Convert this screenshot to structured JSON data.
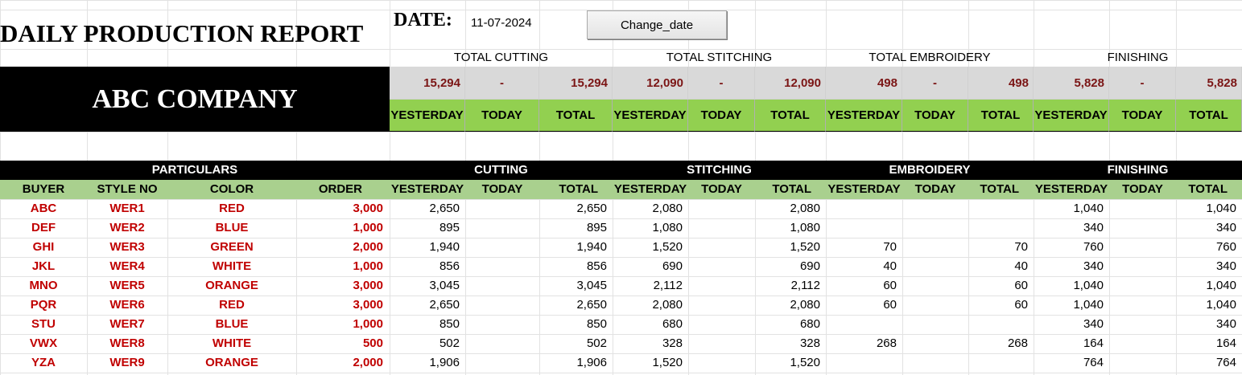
{
  "header": {
    "title": "DAILY PRODUCTION REPORT",
    "date_label": "DATE:",
    "date_value": "11-07-2024",
    "change_button": "Change_date",
    "company": "ABC COMPANY"
  },
  "summary": [
    {
      "title": "TOTAL CUTTING",
      "yesterday": "15,294",
      "today": "-",
      "total": "15,294"
    },
    {
      "title": "TOTAL STITCHING",
      "yesterday": "12,090",
      "today": "-",
      "total": "12,090"
    },
    {
      "title": "TOTAL EMBROIDERY",
      "yesterday": "498",
      "today": "-",
      "total": "498"
    },
    {
      "title": "FINISHING",
      "yesterday": "5,828",
      "today": "-",
      "total": "5,828"
    }
  ],
  "labels": {
    "yesterday": "YESTERDAY",
    "today": "TODAY",
    "total": "TOTAL"
  },
  "sections": {
    "particulars": "PARTICULARS",
    "cutting": "CUTTING",
    "stitching": "STITCHING",
    "embroidery": "EMBROIDERY",
    "finishing": "FINISHING"
  },
  "columns": {
    "buyer": "BUYER",
    "style": "STYLE NO",
    "color": "COLOR",
    "order": "ORDER"
  },
  "rows": [
    {
      "buyer": "ABC",
      "style": "WER1",
      "color": "RED",
      "order": "3,000",
      "cut_y": "2,650",
      "cut_t": "",
      "cut_total": "2,650",
      "st_y": "2,080",
      "st_t": "",
      "st_total": "2,080",
      "em_y": "",
      "em_t": "",
      "em_total": "",
      "fi_y": "1,040",
      "fi_t": "",
      "fi_total": "1,040"
    },
    {
      "buyer": "DEF",
      "style": "WER2",
      "color": "BLUE",
      "order": "1,000",
      "cut_y": "895",
      "cut_t": "",
      "cut_total": "895",
      "st_y": "1,080",
      "st_t": "",
      "st_total": "1,080",
      "em_y": "",
      "em_t": "",
      "em_total": "",
      "fi_y": "340",
      "fi_t": "",
      "fi_total": "340"
    },
    {
      "buyer": "GHI",
      "style": "WER3",
      "color": "GREEN",
      "order": "2,000",
      "cut_y": "1,940",
      "cut_t": "",
      "cut_total": "1,940",
      "st_y": "1,520",
      "st_t": "",
      "st_total": "1,520",
      "em_y": "70",
      "em_t": "",
      "em_total": "70",
      "fi_y": "760",
      "fi_t": "",
      "fi_total": "760"
    },
    {
      "buyer": "JKL",
      "style": "WER4",
      "color": "WHITE",
      "order": "1,000",
      "cut_y": "856",
      "cut_t": "",
      "cut_total": "856",
      "st_y": "690",
      "st_t": "",
      "st_total": "690",
      "em_y": "40",
      "em_t": "",
      "em_total": "40",
      "fi_y": "340",
      "fi_t": "",
      "fi_total": "340"
    },
    {
      "buyer": "MNO",
      "style": "WER5",
      "color": "ORANGE",
      "order": "3,000",
      "cut_y": "3,045",
      "cut_t": "",
      "cut_total": "3,045",
      "st_y": "2,112",
      "st_t": "",
      "st_total": "2,112",
      "em_y": "60",
      "em_t": "",
      "em_total": "60",
      "fi_y": "1,040",
      "fi_t": "",
      "fi_total": "1,040"
    },
    {
      "buyer": "PQR",
      "style": "WER6",
      "color": "RED",
      "order": "3,000",
      "cut_y": "2,650",
      "cut_t": "",
      "cut_total": "2,650",
      "st_y": "2,080",
      "st_t": "",
      "st_total": "2,080",
      "em_y": "60",
      "em_t": "",
      "em_total": "60",
      "fi_y": "1,040",
      "fi_t": "",
      "fi_total": "1,040"
    },
    {
      "buyer": "STU",
      "style": "WER7",
      "color": "BLUE",
      "order": "1,000",
      "cut_y": "850",
      "cut_t": "",
      "cut_total": "850",
      "st_y": "680",
      "st_t": "",
      "st_total": "680",
      "em_y": "",
      "em_t": "",
      "em_total": "",
      "fi_y": "340",
      "fi_t": "",
      "fi_total": "340"
    },
    {
      "buyer": "VWX",
      "style": "WER8",
      "color": "WHITE",
      "order": "500",
      "cut_y": "502",
      "cut_t": "",
      "cut_total": "502",
      "st_y": "328",
      "st_t": "",
      "st_total": "328",
      "em_y": "268",
      "em_t": "",
      "em_total": "268",
      "fi_y": "164",
      "fi_t": "",
      "fi_total": "164"
    },
    {
      "buyer": "YZA",
      "style": "WER9",
      "color": "ORANGE",
      "order": "2,000",
      "cut_y": "1,906",
      "cut_t": "",
      "cut_total": "1,906",
      "st_y": "1,520",
      "st_t": "",
      "st_total": "1,520",
      "em_y": "",
      "em_t": "",
      "em_total": "",
      "fi_y": "764",
      "fi_t": "",
      "fi_total": "764"
    }
  ]
}
